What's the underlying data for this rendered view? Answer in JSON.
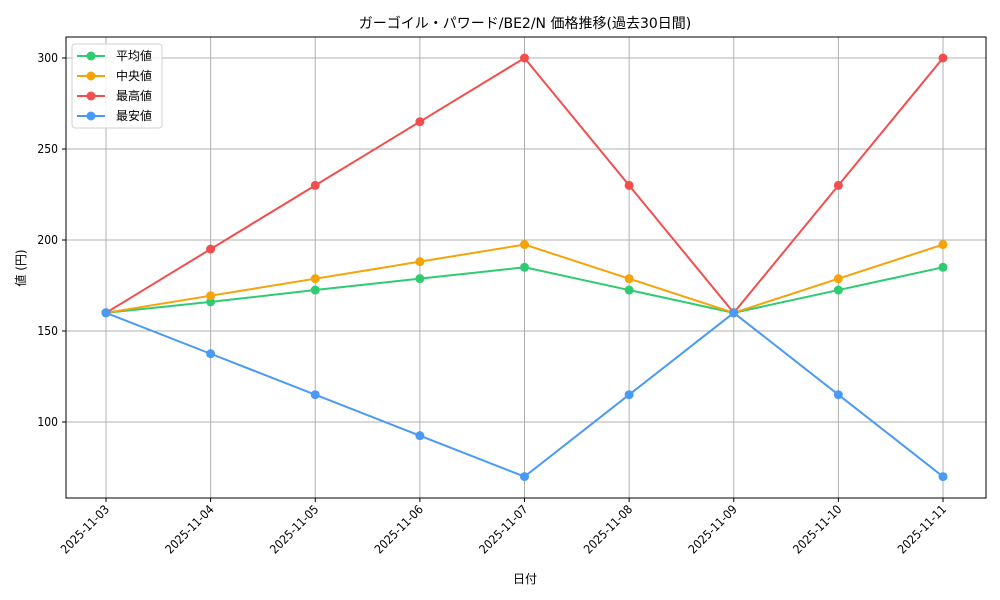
{
  "chart_data": {
    "type": "line",
    "title": "ガーゴイル・パワード/BE2/N 価格推移(過去30日間)",
    "xlabel": "日付",
    "ylabel": "値 (円)",
    "categories": [
      "2025-11-03",
      "2025-11-04",
      "2025-11-05",
      "2025-11-06",
      "2025-11-07",
      "2025-11-08",
      "2025-11-09",
      "2025-11-10",
      "2025-11-11"
    ],
    "ylim": [
      61,
      311
    ],
    "yticks": [
      100,
      150,
      200,
      250,
      300
    ],
    "grid": true,
    "legend_position": "upper left",
    "series": [
      {
        "name": "平均値",
        "color": "#2ecc71",
        "values": [
          160,
          166,
          172.5,
          178.75,
          185,
          172.5,
          160,
          172.5,
          185
        ]
      },
      {
        "name": "中央値",
        "color": "#f5a30a",
        "values": [
          160,
          169.4,
          178.75,
          188.1,
          197.5,
          178.75,
          160,
          178.75,
          197.5
        ]
      },
      {
        "name": "最高値",
        "color": "#f24e4e",
        "values": [
          160,
          195,
          230,
          265,
          300,
          230,
          160,
          230,
          300
        ]
      },
      {
        "name": "最安値",
        "color": "#4a9af5",
        "values": [
          160,
          137.5,
          115,
          92.5,
          70,
          115,
          160,
          115,
          70
        ]
      }
    ]
  }
}
